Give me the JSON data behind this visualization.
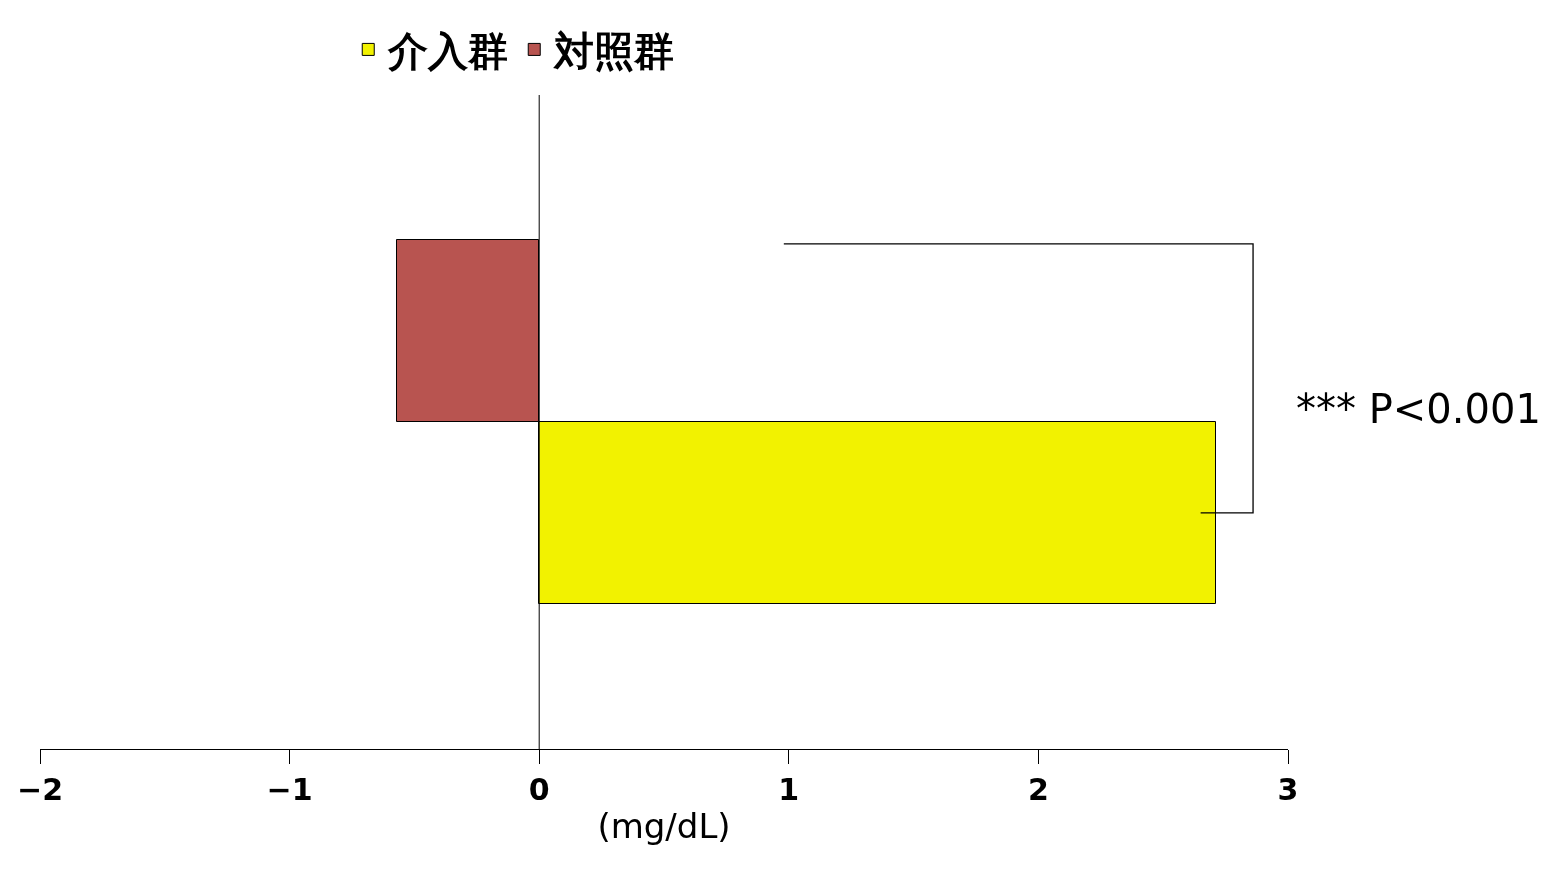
{
  "chart_data": {
    "type": "bar",
    "orientation": "horizontal",
    "categories": [
      null
    ],
    "series": [
      {
        "name": "介入群",
        "color": "#f2f200",
        "values": [
          2.71
        ]
      },
      {
        "name": "対照群",
        "color": "#b85450",
        "values": [
          -0.57
        ]
      }
    ],
    "ref_lines": [
      {
        "axis": "x",
        "value": 0,
        "color": "#000000"
      }
    ],
    "xlim": [
      -2,
      3
    ],
    "xticks": [
      -2,
      -1,
      0,
      1,
      2,
      3
    ],
    "xlabel": "(mg/dL)",
    "tick_labels": "x",
    "grid": false,
    "legend": "top",
    "annotations": [
      "*** P<0.001"
    ]
  }
}
